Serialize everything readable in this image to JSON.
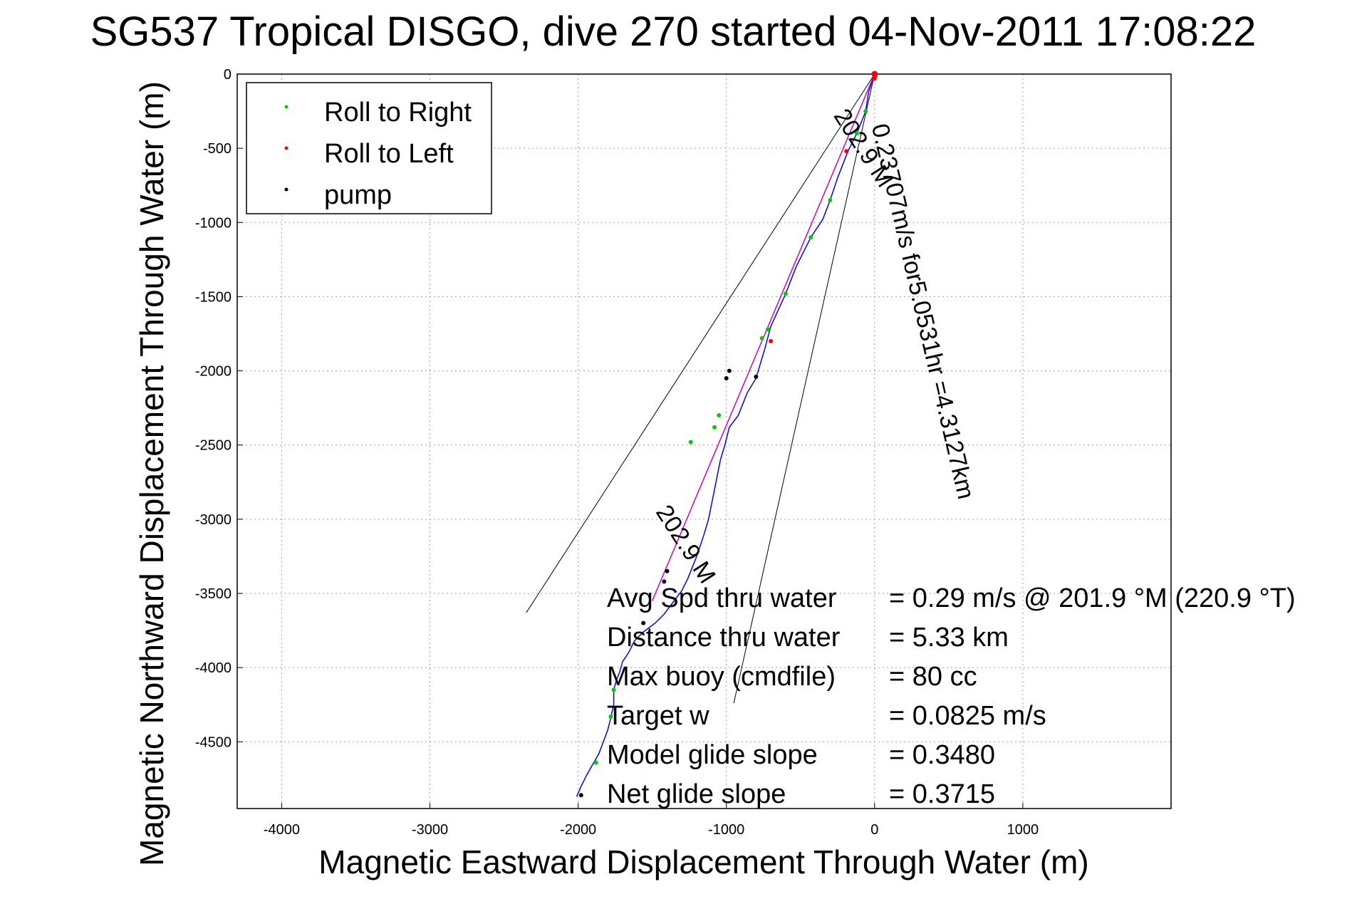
{
  "chart_data": {
    "type": "line",
    "title": "SG537 Tropical DISGO, dive 270 started 04-Nov-2011 17:08:22",
    "xlabel": "Magnetic Eastward Displacement Through Water (m)",
    "ylabel": "Magnetic Northward Displacement Through Water (m)",
    "xlim": [
      -4300,
      2000
    ],
    "ylim": [
      -4950,
      0
    ],
    "xticks": [
      -4000,
      -3000,
      -2000,
      -1000,
      0,
      1000
    ],
    "yticks": [
      0,
      -500,
      -1000,
      -1500,
      -2000,
      -2500,
      -3000,
      -3500,
      -4000,
      -4500
    ],
    "grid": true,
    "legend_position": "top-left",
    "legend": [
      {
        "label": "Roll to Right",
        "color": "#00cc00"
      },
      {
        "label": "Roll to Left",
        "color": "#ff0000"
      },
      {
        "label": "pump",
        "color": "#000000"
      }
    ],
    "series": [
      {
        "color": "#0000ff",
        "x": [
          0,
          -40,
          -60,
          -120,
          -180,
          -250,
          -300,
          -350,
          -430,
          -530,
          -600,
          -700,
          -740,
          -800,
          -860,
          -920,
          -980,
          -1010,
          -1040,
          -1060,
          -1080,
          -1100,
          -1120,
          -1150,
          -1200,
          -1220,
          -1260,
          -1300,
          -1360,
          -1420,
          -1480,
          -1560,
          -1620,
          -1660,
          -1700,
          -1720,
          -1740,
          -1760,
          -1760,
          -1780,
          -1800,
          -1830,
          -1860,
          -1900,
          -1940,
          -1980,
          -2010
        ],
        "y": [
          0,
          -120,
          -250,
          -400,
          -520,
          -700,
          -850,
          -980,
          -1100,
          -1300,
          -1480,
          -1700,
          -1850,
          -2050,
          -2150,
          -2300,
          -2380,
          -2500,
          -2600,
          -2700,
          -2800,
          -2900,
          -3000,
          -3100,
          -3250,
          -3300,
          -3400,
          -3480,
          -3560,
          -3640,
          -3700,
          -3760,
          -3820,
          -3900,
          -3960,
          -4030,
          -4080,
          -4150,
          -4250,
          -4340,
          -4420,
          -4500,
          -4580,
          -4650,
          -4720,
          -4800,
          -4870
        ]
      },
      {
        "color": "#cc00cc",
        "x": [
          0,
          -1500
        ],
        "y": [
          0,
          -3550
        ]
      }
    ],
    "points": {
      "roll_right": {
        "color": "#00cc00",
        "x": [
          -60,
          -120,
          -300,
          -430,
          -600,
          -720,
          -760,
          -1050,
          -1080,
          -1240,
          -1760,
          -1780,
          -1880
        ],
        "y": [
          -250,
          -400,
          -850,
          -1100,
          -1480,
          -1720,
          -1780,
          -2300,
          -2380,
          -2480,
          -4150,
          -4330,
          -4640
        ]
      },
      "roll_left": {
        "color": "#ff0000",
        "x": [
          5,
          0,
          -190,
          -700
        ],
        "y": [
          -10,
          -30,
          -520,
          -1800
        ]
      },
      "pump": {
        "color": "#000000",
        "x": [
          -800,
          -980,
          -1000,
          -1400,
          -1420,
          -1560,
          -1980
        ],
        "y": [
          -2040,
          -2000,
          -2050,
          -3350,
          -3420,
          -3700,
          -4860
        ]
      }
    },
    "annotation_lines": [
      {
        "x": [
          0,
          -2350
        ],
        "y": [
          0,
          -3630
        ]
      },
      {
        "x": [
          0,
          -950
        ],
        "y": [
          0,
          -4240
        ]
      }
    ],
    "rotated_labels": [
      {
        "text": "202.9 M",
        "x": -280,
        "y": -280,
        "angle": 57.06
      },
      {
        "text": "0.23707m/s for5.0531hr =4.3127km",
        "x": -20,
        "y": -350,
        "angle": 76.9
      },
      {
        "text": "202.9 M",
        "x": -1480,
        "y": -2950,
        "angle": 57.06
      }
    ],
    "summary": [
      {
        "label": "Avg Spd thru water",
        "value": "=  0.29 m/s @ 201.9 °M (220.9 °T)"
      },
      {
        "label": "Distance thru water",
        "value": "=  5.33 km"
      },
      {
        "label": "Max buoy (cmdfile)",
        "value": "= 80 cc"
      },
      {
        "label": "Target w",
        "value": "= 0.0825 m/s"
      },
      {
        "label": "Model glide slope",
        "value": "= 0.3480"
      },
      {
        "label": "Net glide slope",
        "value": "= 0.3715"
      }
    ]
  }
}
